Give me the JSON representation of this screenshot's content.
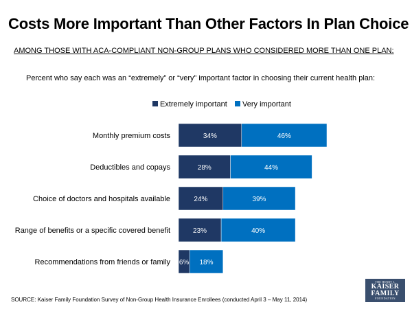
{
  "title": "Costs More Important Than Other Factors In Plan Choice",
  "subtitle": "AMONG THOSE WITH ACA-COMPLIANT NON-GROUP PLANS WHO CONSIDERED MORE THAN ONE PLAN:",
  "question": "Percent who say each was an “extremely” or “very” important factor in choosing their current health plan:",
  "source": "SOURCE: Kaiser Family Foundation Survey of Non-Group Health Insurance Enrollees (conducted April 3 – May 11, 2014)",
  "logo": {
    "top": "THE HENRY J.",
    "line1": "KAISER",
    "line2": "FAMILY",
    "bottom": "FOUNDATION"
  },
  "colors": {
    "extremely": "#1f3864",
    "very": "#0070c0",
    "label_text": "#ffffff"
  },
  "chart_data": {
    "type": "bar",
    "orientation": "horizontal",
    "stacked": true,
    "categories": [
      "Monthly premium costs",
      "Deductibles and copays",
      "Choice of doctors and hospitals available",
      "Range of benefits or a specific covered benefit",
      "Recommendations from friends or family"
    ],
    "series": [
      {
        "name": "Extremely important",
        "values": [
          34,
          28,
          24,
          23,
          6
        ],
        "labels": [
          "34%",
          "28%",
          "24%",
          "23%",
          "6%"
        ]
      },
      {
        "name": "Very important",
        "values": [
          46,
          44,
          39,
          40,
          18
        ],
        "labels": [
          "46%",
          "44%",
          "39%",
          "40%",
          "18%"
        ]
      }
    ],
    "legend": "top",
    "xlim": [
      0,
      100
    ],
    "grid": false
  }
}
